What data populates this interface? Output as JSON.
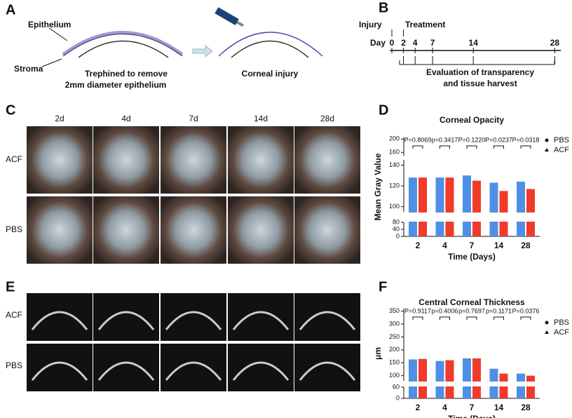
{
  "panel_labels": [
    "A",
    "B",
    "C",
    "D",
    "E",
    "F"
  ],
  "schematic": {
    "epithelium": "Epithelium",
    "stroma": "Stroma",
    "caption_left": [
      "Trephined to remove",
      "2mm diameter epithelium"
    ],
    "caption_right": "Corneal injury"
  },
  "timeline": {
    "injury": "Injury",
    "treatment": "Treatment",
    "day_label": "Day",
    "days": [
      0,
      2,
      4,
      7,
      14,
      28
    ],
    "evaluation": [
      "Evaluation of transparency",
      "and tissue harvest"
    ]
  },
  "photos": {
    "columns": [
      "2d",
      "4d",
      "7d",
      "14d",
      "28d"
    ],
    "rows": [
      "ACF",
      "PBS"
    ]
  },
  "oct": {
    "rows": [
      "ACF",
      "PBS"
    ]
  },
  "chart_data": [
    {
      "type": "bar",
      "title": "Corneal Opacity",
      "x_label": "Time (Days)",
      "y_label": "Mean Gray Value",
      "categories": [
        "2",
        "4",
        "7",
        "14",
        "28"
      ],
      "series": [
        {
          "name": "PBS",
          "color": "#4f8fe6",
          "values": [
            128,
            128,
            130,
            123,
            124
          ]
        },
        {
          "name": "ACF",
          "color": "#f03a2a",
          "values": [
            128,
            128,
            125,
            115,
            117
          ]
        }
      ],
      "annotations": [
        "P=0.8069",
        "p=0.3417",
        "P=0.1220",
        "P=0.0237",
        "P=0.0318"
      ],
      "ylim": [
        0,
        205
      ],
      "ysegments": [
        [
          0,
          80
        ],
        [
          95,
          145
        ],
        [
          150,
          205
        ]
      ],
      "yticks": [
        0,
        40,
        80,
        100,
        120,
        140,
        160,
        200
      ],
      "legend": "right"
    },
    {
      "type": "bar",
      "title": "Central Corneal Thickness",
      "x_label": "Time (Days)",
      "y_label": "μm",
      "categories": [
        "2",
        "4",
        "7",
        "14",
        "28"
      ],
      "series": [
        {
          "name": "PBS",
          "color": "#4f8fe6",
          "values": [
            163,
            157,
            167,
            127,
            108
          ]
        },
        {
          "name": "ACF",
          "color": "#f03a2a",
          "values": [
            165,
            160,
            167,
            108,
            100
          ]
        }
      ],
      "annotations": [
        "P=0.9117",
        "p=0.4006",
        "p=0.7697",
        "p=0.1171",
        "P=0.0376"
      ],
      "ylim": [
        0,
        360
      ],
      "ysegments": [
        [
          0,
          60
        ],
        [
          80,
          360
        ]
      ],
      "yticks": [
        0,
        60,
        100,
        150,
        200,
        250,
        300,
        350
      ],
      "legend": "right"
    }
  ]
}
